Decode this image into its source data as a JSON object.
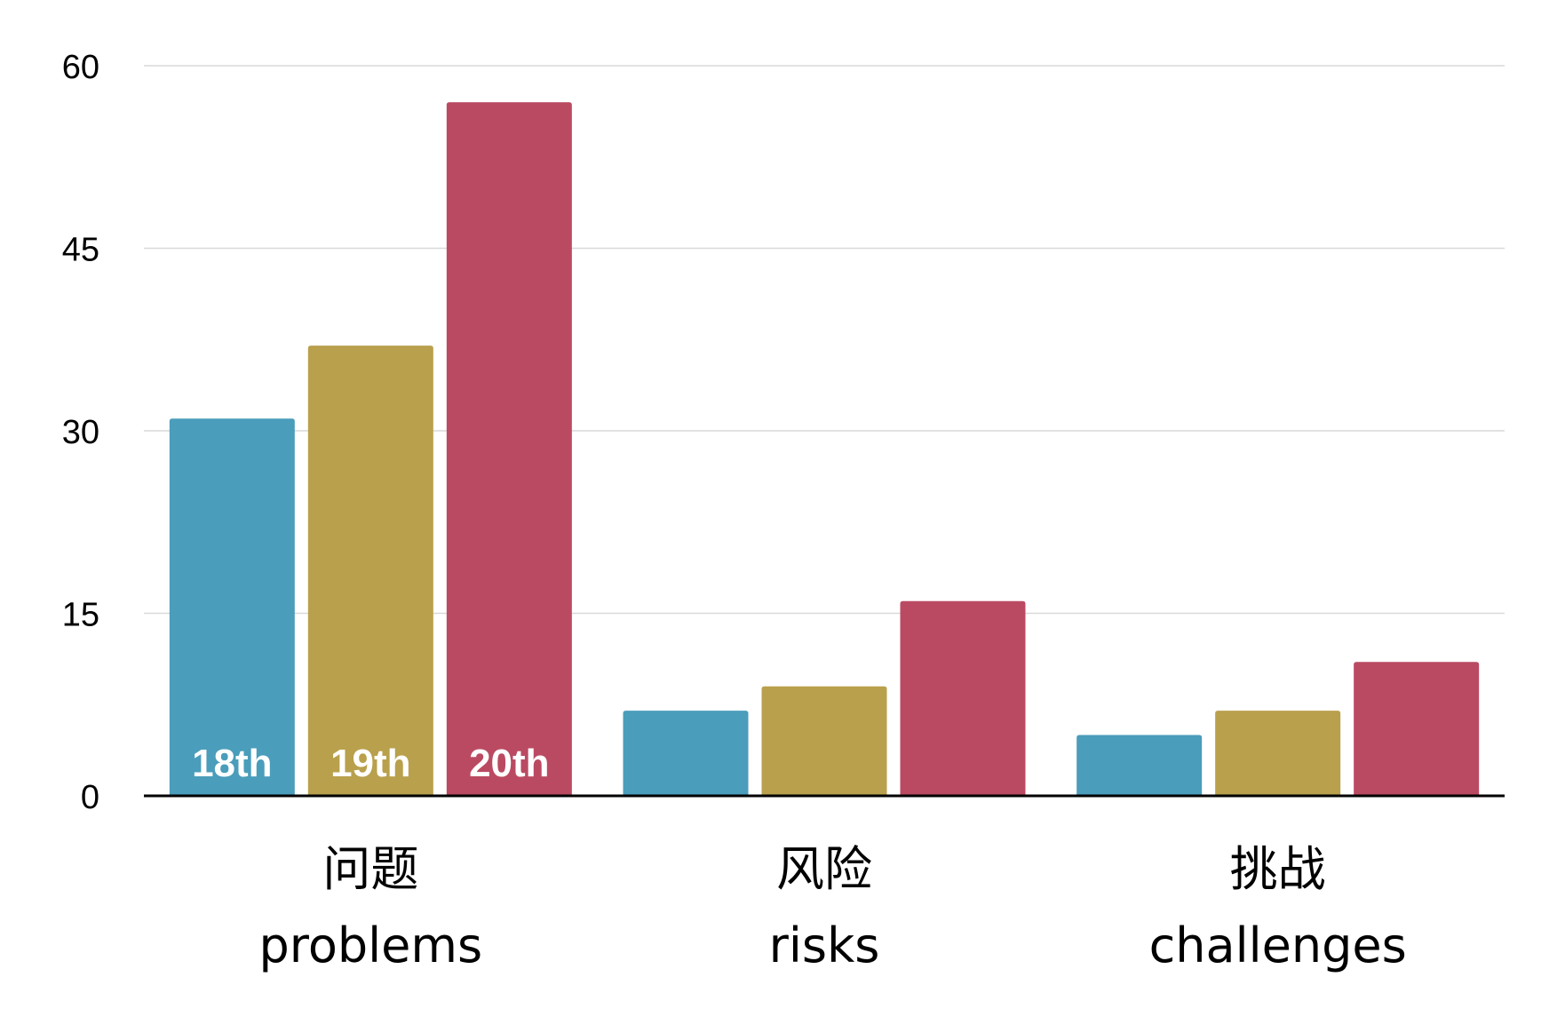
{
  "chart_data": {
    "type": "bar",
    "categories": [
      {
        "zh": "问题",
        "en": "problems"
      },
      {
        "zh": "风险",
        "en": "risks"
      },
      {
        "zh": "挑战",
        "en": "challenges"
      }
    ],
    "series": [
      {
        "name": "18th",
        "color": "#4A9DBB",
        "values": [
          31,
          7,
          5
        ]
      },
      {
        "name": "19th",
        "color": "#B9A04C",
        "values": [
          37,
          9,
          7
        ]
      },
      {
        "name": "20th",
        "color": "#BA4A62",
        "values": [
          57,
          16,
          11
        ]
      }
    ],
    "y_ticks": [
      "0",
      "15",
      "30",
      "45",
      "60"
    ],
    "ylim": [
      0,
      60
    ],
    "grid": true,
    "legend": "series names written inside the bars of the first category"
  }
}
